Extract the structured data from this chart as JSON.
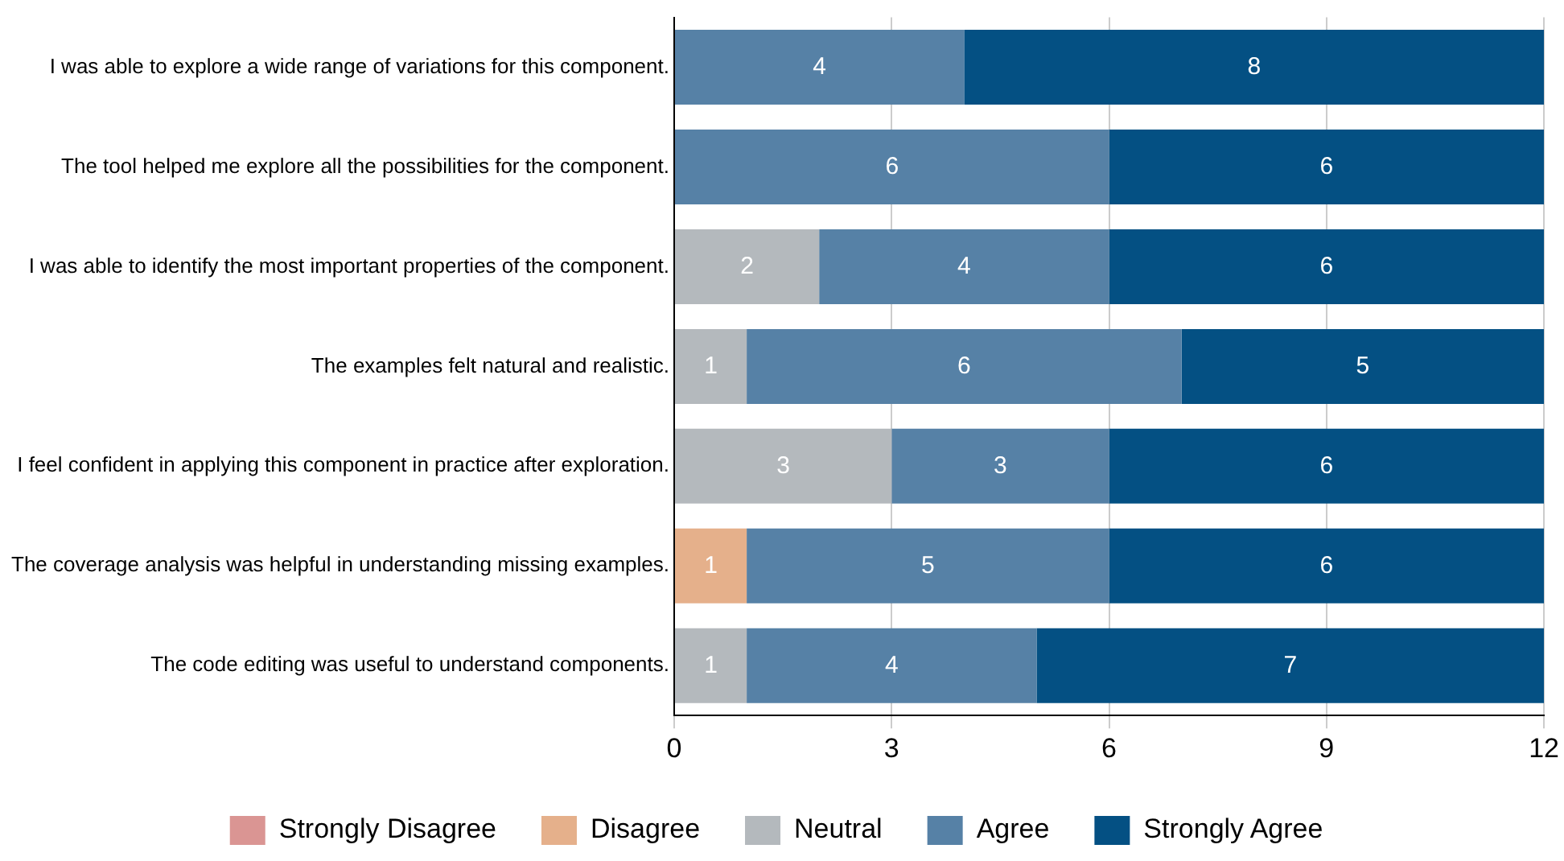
{
  "chart_data": {
    "type": "bar",
    "orientation": "horizontal",
    "stacked": true,
    "categories": [
      "I was able to explore a wide range of variations for this component.",
      "The tool helped me explore all the possibilities for the component.",
      "I was able to identify the most important properties of the component.",
      "The examples felt natural and realistic.",
      "I feel confident in applying this component in practice after exploration.",
      "The coverage analysis was helpful in understanding missing examples.",
      "The code editing was useful to understand components."
    ],
    "series": [
      {
        "name": "Strongly Disagree",
        "color": "#da9593",
        "values": [
          null,
          null,
          null,
          null,
          null,
          null,
          null
        ]
      },
      {
        "name": "Disagree",
        "color": "#e5b08b",
        "values": [
          null,
          null,
          null,
          null,
          null,
          1,
          null
        ]
      },
      {
        "name": "Neutral",
        "color": "#b4b9bd",
        "values": [
          null,
          null,
          2,
          1,
          3,
          null,
          1
        ]
      },
      {
        "name": "Agree",
        "color": "#5681a6",
        "values": [
          4,
          6,
          4,
          6,
          3,
          5,
          4
        ]
      },
      {
        "name": "Strongly Agree",
        "color": "#045083",
        "values": [
          8,
          6,
          6,
          5,
          6,
          6,
          7
        ]
      }
    ],
    "xlim": [
      0,
      12
    ],
    "xticks": [
      0,
      3,
      6,
      9,
      12
    ],
    "grid": "x",
    "legend": "bottom",
    "data_labels": true
  }
}
